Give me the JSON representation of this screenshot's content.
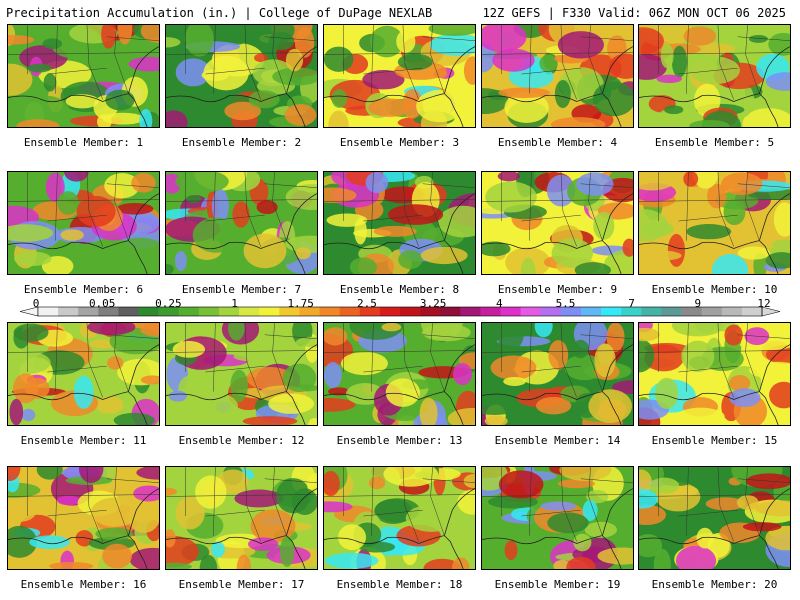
{
  "header": {
    "left": "Precipitation Accumulation (in.) | College of DuPage NEXLAB",
    "right": "12Z GEFS | F330 Valid: 06Z MON OCT 06 2025"
  },
  "colorbar": {
    "labels": [
      "0",
      "0.05",
      "0.25",
      "1",
      "1.75",
      "2.5",
      "3.25",
      "4",
      "5.5",
      "7",
      "9",
      "12"
    ],
    "colors": [
      "#f2f2f2",
      "#c9c9c9",
      "#a4a4a4",
      "#7f7f7f",
      "#5f5f5f",
      "#2e8a2e",
      "#3e9b2f",
      "#56ae2f",
      "#78c038",
      "#a3d43e",
      "#d8e842",
      "#f2f23a",
      "#f2c831",
      "#f2a82a",
      "#f0882a",
      "#e96322",
      "#e33c1f",
      "#d81c1c",
      "#c21418",
      "#a51023",
      "#8f0f3a",
      "#a31776",
      "#c31f9e",
      "#dd31c9",
      "#e35ae3",
      "#b26ff0",
      "#7d8ff5",
      "#5fb7f5",
      "#36e8f5",
      "#3ad2c8",
      "#45b3a6",
      "#5c9a95",
      "#8a8a8a",
      "#a0a0a0",
      "#b8b8b8",
      "#cfcfcf"
    ]
  },
  "map_colors": [
    "#2e8a2e",
    "#56ae2f",
    "#a3d43e",
    "#e2c233",
    "#f2f23a",
    "#f0882a",
    "#e33c1f",
    "#c21418",
    "#a31776",
    "#dd31c9",
    "#7d8ff5",
    "#36e8f5"
  ],
  "members": [
    {
      "label": "Ensemble Member: 1"
    },
    {
      "label": "Ensemble Member: 2"
    },
    {
      "label": "Ensemble Member: 3"
    },
    {
      "label": "Ensemble Member: 4"
    },
    {
      "label": "Ensemble Member: 5"
    },
    {
      "label": "Ensemble Member: 6"
    },
    {
      "label": "Ensemble Member: 7"
    },
    {
      "label": "Ensemble Member: 8"
    },
    {
      "label": "Ensemble Member: 9"
    },
    {
      "label": "Ensemble Member: 10"
    },
    {
      "label": "Ensemble Member: 11"
    },
    {
      "label": "Ensemble Member: 12"
    },
    {
      "label": "Ensemble Member: 13"
    },
    {
      "label": "Ensemble Member: 14"
    },
    {
      "label": "Ensemble Member: 15"
    },
    {
      "label": "Ensemble Member: 16"
    },
    {
      "label": "Ensemble Member: 17"
    },
    {
      "label": "Ensemble Member: 18"
    },
    {
      "label": "Ensemble Member: 19"
    },
    {
      "label": "Ensemble Member: 20"
    }
  ]
}
